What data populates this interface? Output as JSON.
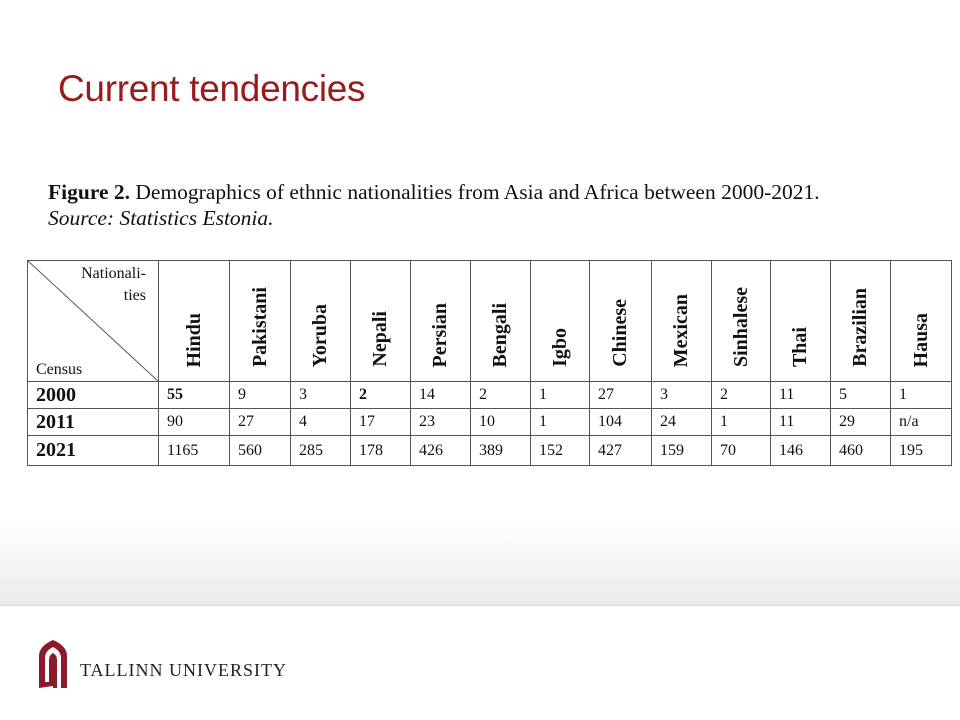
{
  "slide_title": "Current tendencies",
  "caption": {
    "figure_label": "Figure 2.",
    "text": " Demographics of ethnic nationalities from Asia and Africa between 2000-2021.",
    "source": "Source: Statistics Estonia."
  },
  "table": {
    "corner_top": "Nationali-\nties",
    "corner_bottom": "Census",
    "columns": [
      "Hindu",
      "Pakistani",
      "Yoruba",
      "Nepali",
      "Persian",
      "Bengali",
      "Igbo",
      "Chinese",
      "Mexican",
      "Sinhalese",
      "Thai",
      "Brazilian",
      "Hausa"
    ],
    "rows": [
      {
        "year": "2000",
        "values": [
          "55",
          "9",
          "3",
          "2",
          "14",
          "2",
          "1",
          "27",
          "3",
          "2",
          "11",
          "5",
          "1"
        ],
        "bold_columns": [
          0,
          3
        ]
      },
      {
        "year": "2011",
        "values": [
          "90",
          "27",
          "4",
          "17",
          "23",
          "10",
          "1",
          "104",
          "24",
          "1",
          "11",
          "29",
          "n/a"
        ],
        "bold_columns": []
      },
      {
        "year": "2021",
        "values": [
          "1165",
          "560",
          "285",
          "178",
          "426",
          "389",
          "152",
          "427",
          "159",
          "70",
          "146",
          "460",
          "195"
        ],
        "bold_columns": []
      }
    ]
  },
  "footer": {
    "university": "TALLINN UNIVERSITY",
    "logo_icon": "tallinn-university-arch-logo"
  },
  "colors": {
    "title": "#9a1b1b",
    "logo": "#8b1a2e"
  }
}
